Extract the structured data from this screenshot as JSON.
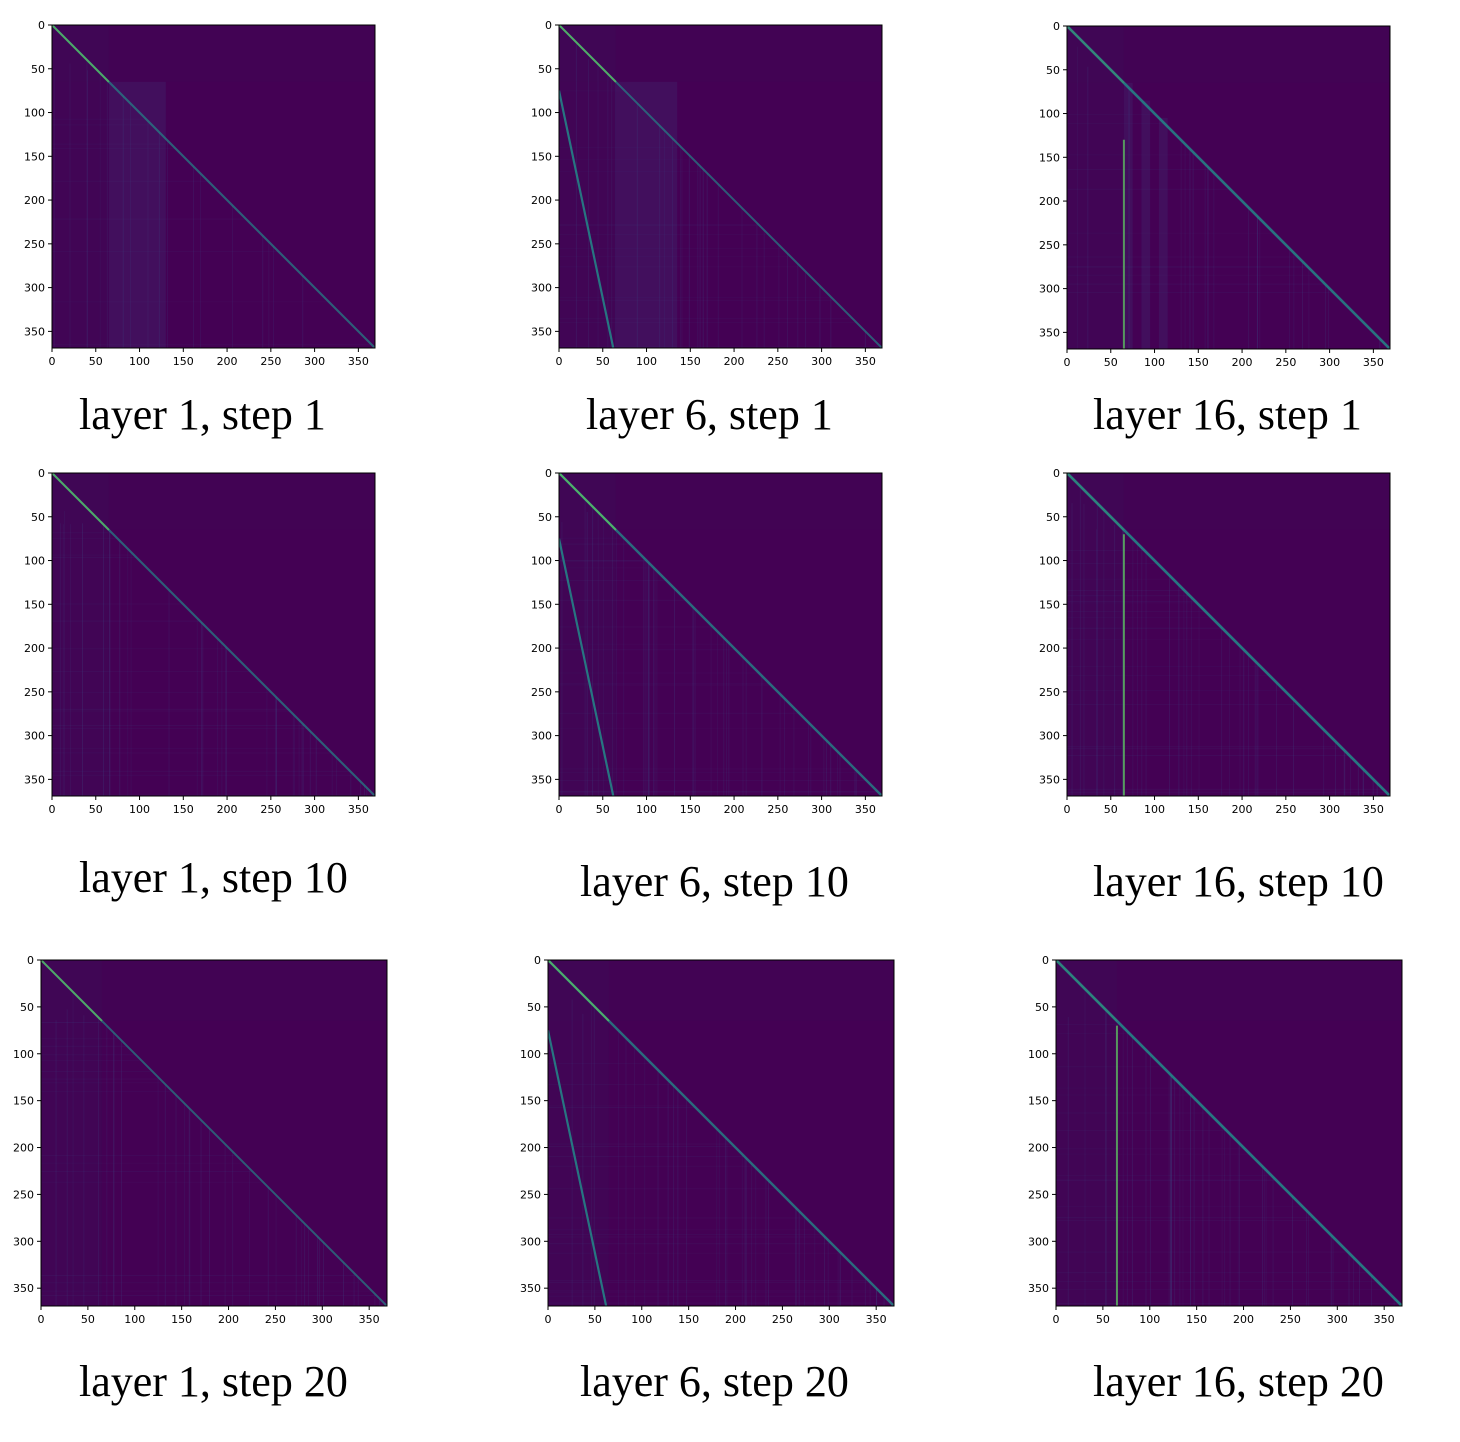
{
  "chart_data": [
    {
      "type": "heatmap",
      "title": "layer 1, step 1",
      "layer": 1,
      "step": 1,
      "xlim": [
        0,
        369
      ],
      "ylim": [
        369,
        0
      ],
      "x_ticks": [
        0,
        50,
        100,
        150,
        200,
        250,
        300,
        350
      ],
      "y_ticks": [
        0,
        50,
        100,
        150,
        200,
        250,
        300,
        350
      ],
      "colormap": "viridis",
      "features": {
        "main_diagonal": 0.55,
        "early_diagonal": 0.7,
        "band": null,
        "column": null,
        "prefix_block_end": 65,
        "vertical_stripes": [
          [
            65,
            130
          ]
        ],
        "texture": 0.15
      }
    },
    {
      "type": "heatmap",
      "title": "layer 6, step 1",
      "layer": 6,
      "step": 1,
      "xlim": [
        0,
        369
      ],
      "ylim": [
        369,
        0
      ],
      "x_ticks": [
        0,
        50,
        100,
        150,
        200,
        250,
        300,
        350
      ],
      "y_ticks": [
        0,
        50,
        100,
        150,
        200,
        250,
        300,
        350
      ],
      "colormap": "viridis",
      "features": {
        "main_diagonal": 0.5,
        "early_diagonal": 0.75,
        "band": {
          "x0": 0,
          "y0": 75,
          "x1": 62,
          "y1": 369
        },
        "column": null,
        "prefix_block_end": 65,
        "vertical_stripes": [
          [
            65,
            135
          ]
        ],
        "texture": 0.25
      }
    },
    {
      "type": "heatmap",
      "title": "layer 16, step 1",
      "layer": 16,
      "step": 1,
      "xlim": [
        0,
        369
      ],
      "ylim": [
        369,
        0
      ],
      "x_ticks": [
        0,
        50,
        100,
        150,
        200,
        250,
        300,
        350
      ],
      "y_ticks": [
        0,
        50,
        100,
        150,
        200,
        250,
        300,
        350
      ],
      "colormap": "viridis",
      "features": {
        "main_diagonal": 0.8,
        "early_diagonal": 0.25,
        "band": null,
        "column": {
          "x": 65,
          "y0": 130,
          "y1": 369
        },
        "prefix_block_end": 65,
        "vertical_stripes": [
          [
            65,
            75
          ],
          [
            85,
            95
          ],
          [
            105,
            115
          ]
        ],
        "texture": 0.2
      }
    },
    {
      "type": "heatmap",
      "title": "layer 1, step 10",
      "layer": 1,
      "step": 10,
      "xlim": [
        0,
        369
      ],
      "ylim": [
        369,
        0
      ],
      "x_ticks": [
        0,
        50,
        100,
        150,
        200,
        250,
        300,
        350
      ],
      "y_ticks": [
        0,
        50,
        100,
        150,
        200,
        250,
        300,
        350
      ],
      "colormap": "viridis",
      "features": {
        "main_diagonal": 0.55,
        "early_diagonal": 0.7,
        "band": null,
        "column": null,
        "prefix_block_end": 65,
        "vertical_stripes": [],
        "texture": 0.3
      }
    },
    {
      "type": "heatmap",
      "title": "layer 6, step 10",
      "layer": 6,
      "step": 10,
      "xlim": [
        0,
        369
      ],
      "ylim": [
        369,
        0
      ],
      "x_ticks": [
        0,
        50,
        100,
        150,
        200,
        250,
        300,
        350
      ],
      "y_ticks": [
        0,
        50,
        100,
        150,
        200,
        250,
        300,
        350
      ],
      "colormap": "viridis",
      "features": {
        "main_diagonal": 0.7,
        "early_diagonal": 0.75,
        "band": {
          "x0": 0,
          "y0": 75,
          "x1": 62,
          "y1": 369
        },
        "column": null,
        "prefix_block_end": 65,
        "vertical_stripes": [],
        "texture": 0.35
      }
    },
    {
      "type": "heatmap",
      "title": "layer 16, step 10",
      "layer": 16,
      "step": 10,
      "xlim": [
        0,
        369
      ],
      "ylim": [
        369,
        0
      ],
      "x_ticks": [
        0,
        50,
        100,
        150,
        200,
        250,
        300,
        350
      ],
      "y_ticks": [
        0,
        50,
        100,
        150,
        200,
        250,
        300,
        350
      ],
      "colormap": "viridis",
      "features": {
        "main_diagonal": 0.85,
        "early_diagonal": 0.15,
        "band": null,
        "column": {
          "x": 65,
          "y0": 70,
          "y1": 369
        },
        "prefix_block_end": 65,
        "vertical_stripes": [],
        "texture": 0.35
      }
    },
    {
      "type": "heatmap",
      "title": "layer 1, step 20",
      "layer": 1,
      "step": 20,
      "xlim": [
        0,
        369
      ],
      "ylim": [
        369,
        0
      ],
      "x_ticks": [
        0,
        50,
        100,
        150,
        200,
        250,
        300,
        350
      ],
      "y_ticks": [
        0,
        50,
        100,
        150,
        200,
        250,
        300,
        350
      ],
      "colormap": "viridis",
      "features": {
        "main_diagonal": 0.5,
        "early_diagonal": 0.7,
        "band": null,
        "column": null,
        "prefix_block_end": 65,
        "vertical_stripes": [],
        "texture": 0.3
      }
    },
    {
      "type": "heatmap",
      "title": "layer 6, step 20",
      "layer": 6,
      "step": 20,
      "xlim": [
        0,
        369
      ],
      "ylim": [
        369,
        0
      ],
      "x_ticks": [
        0,
        50,
        100,
        150,
        200,
        250,
        300,
        350
      ],
      "y_ticks": [
        0,
        50,
        100,
        150,
        200,
        250,
        300,
        350
      ],
      "colormap": "viridis",
      "features": {
        "main_diagonal": 0.7,
        "early_diagonal": 0.7,
        "band": {
          "x0": 0,
          "y0": 75,
          "x1": 62,
          "y1": 369
        },
        "column": null,
        "prefix_block_end": 65,
        "vertical_stripes": [],
        "texture": 0.35
      }
    },
    {
      "type": "heatmap",
      "title": "layer 16, step 20",
      "layer": 16,
      "step": 20,
      "xlim": [
        0,
        369
      ],
      "ylim": [
        369,
        0
      ],
      "x_ticks": [
        0,
        50,
        100,
        150,
        200,
        250,
        300,
        350
      ],
      "y_ticks": [
        0,
        50,
        100,
        150,
        200,
        250,
        300,
        350
      ],
      "colormap": "viridis",
      "features": {
        "main_diagonal": 0.85,
        "early_diagonal": 0.15,
        "band": null,
        "column": {
          "x": 65,
          "y0": 70,
          "y1": 369
        },
        "prefix_block_end": 65,
        "vertical_stripes": [],
        "texture": 0.35
      }
    }
  ],
  "colors": {
    "background": "#440154",
    "low": "#3e0a55",
    "mid": "#3b528b",
    "high": "#21918c",
    "peak": "#5ec962",
    "axis": "#000000"
  }
}
